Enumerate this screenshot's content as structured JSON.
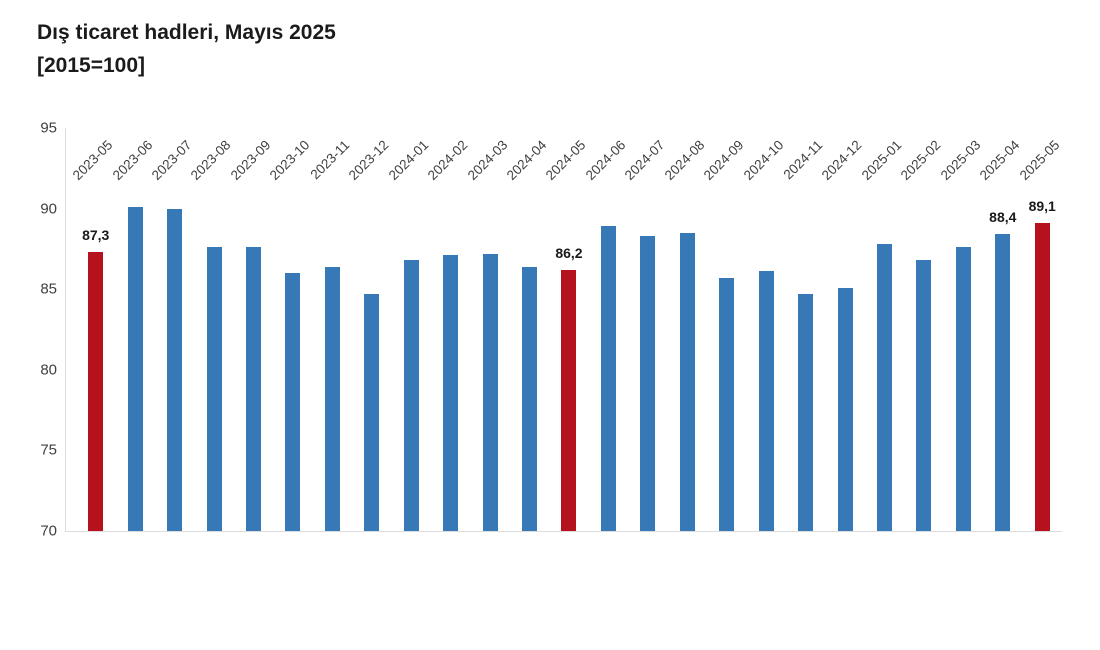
{
  "title": "Dış ticaret hadleri, Mayıs 2025",
  "subtitle": "[2015=100]",
  "colors": {
    "bar_blue": "#3778B6",
    "bar_red": "#B5121E",
    "axis_line": "#DCDCDC",
    "tick_text": "#3F3F3F",
    "value_label_text": "#1A1A1A"
  },
  "chart_data": {
    "type": "bar",
    "title": "Dış ticaret hadleri, Mayıs 2025",
    "subtitle": "[2015=100]",
    "xlabel": "",
    "ylabel": "",
    "ylim": [
      70,
      95
    ],
    "y_ticks": [
      95,
      90,
      85,
      80,
      75,
      70
    ],
    "grid": false,
    "legend": null,
    "decimal_separator": "comma",
    "categories": [
      "2023-05",
      "2023-06",
      "2023-07",
      "2023-08",
      "2023-09",
      "2023-10",
      "2023-11",
      "2023-12",
      "2024-01",
      "2024-02",
      "2024-03",
      "2024-04",
      "2024-05",
      "2024-06",
      "2024-07",
      "2024-08",
      "2024-09",
      "2024-10",
      "2024-11",
      "2024-12",
      "2025-01",
      "2025-02",
      "2025-03",
      "2025-04",
      "2025-05"
    ],
    "values": [
      87.3,
      90.1,
      90.0,
      87.6,
      87.6,
      86.0,
      86.4,
      84.7,
      86.8,
      87.1,
      87.2,
      86.4,
      86.2,
      88.9,
      88.3,
      88.5,
      85.7,
      86.1,
      84.7,
      85.1,
      87.8,
      86.8,
      87.6,
      88.4,
      89.1
    ],
    "value_labels": [
      "87,3",
      null,
      null,
      null,
      null,
      null,
      null,
      null,
      null,
      null,
      null,
      null,
      "86,2",
      null,
      null,
      null,
      null,
      null,
      null,
      null,
      null,
      null,
      null,
      "88,4",
      "89,1"
    ],
    "highlighted_indices": [
      0,
      12,
      24
    ],
    "bar_color": "#3778B6",
    "highlight_color": "#B5121E"
  }
}
